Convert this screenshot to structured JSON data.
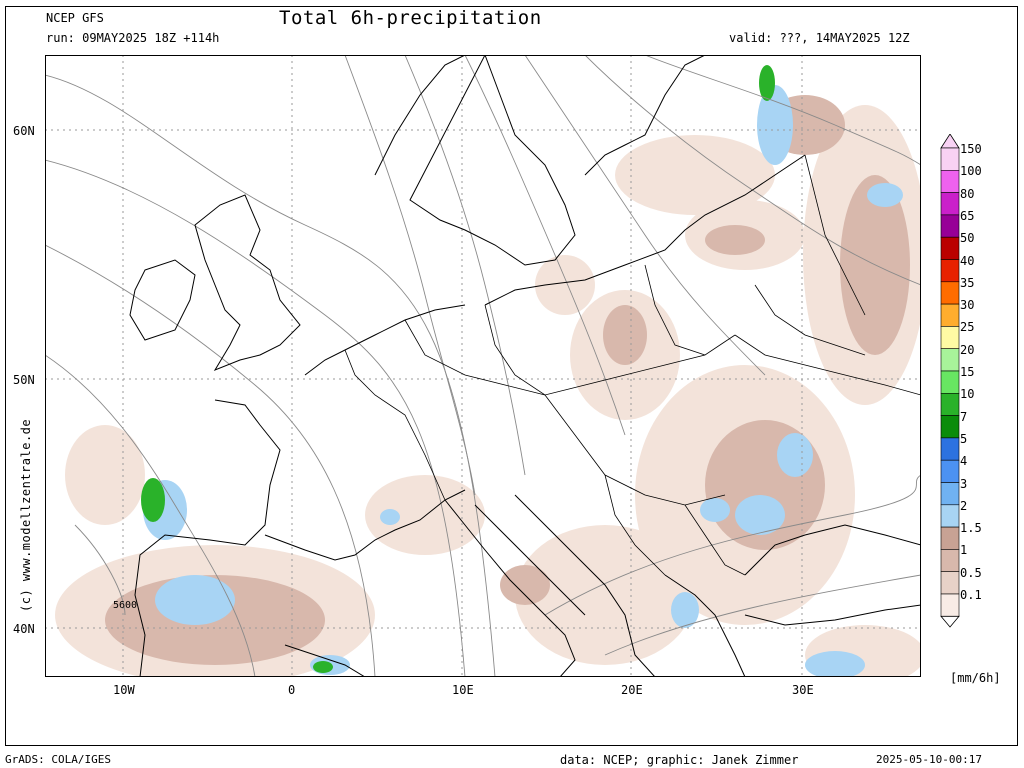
{
  "header": {
    "model": "NCEP GFS",
    "run": "run: 09MAY2025 18Z +114h",
    "title": "Total 6h-precipitation",
    "valid": "valid: ???, 14MAY2025 12Z"
  },
  "axes": {
    "lat_labels": [
      "60N",
      "50N",
      "40N"
    ],
    "lon_labels": [
      "10W",
      "0",
      "10E",
      "20E",
      "30E"
    ],
    "isoline_label": "5600"
  },
  "credit": "(c) www.modellzentrale.de",
  "legend": {
    "unit": "[mm/6h]",
    "levels": [
      "150",
      "100",
      "80",
      "65",
      "50",
      "40",
      "35",
      "30",
      "25",
      "20",
      "15",
      "10",
      "7",
      "5",
      "4",
      "3",
      "2",
      "1.5",
      "1",
      "0.5",
      "0.1"
    ],
    "colors": [
      "#f8d2f4",
      "#ee62ee",
      "#ca20ca",
      "#970097",
      "#ba0000",
      "#e82200",
      "#ff6c00",
      "#ffad2e",
      "#fffaa4",
      "#a8f49a",
      "#68e662",
      "#2ab22a",
      "#0a8c0a",
      "#2c72e0",
      "#4c92f2",
      "#70b2f2",
      "#a8d4f4",
      "#c8a294",
      "#d8b8ac",
      "#e8d2c8",
      "#f8ece6"
    ]
  },
  "footer": {
    "left": "GrADS: COLA/IGES",
    "mid": "data: NCEP; graphic: Janek Zimmer",
    "right": "2025-05-10-00:17"
  }
}
